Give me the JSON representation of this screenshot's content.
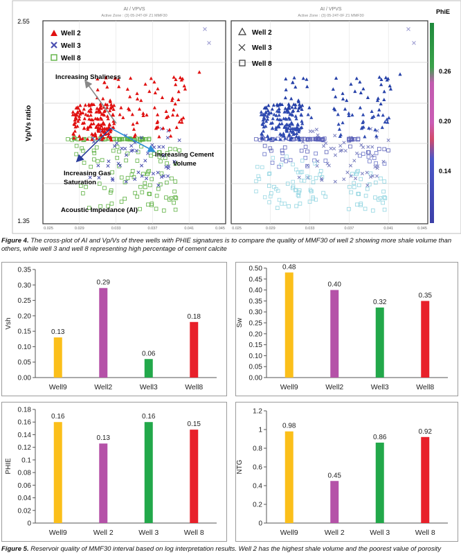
{
  "figure4": {
    "caption_label": "Figure 4.",
    "caption_text": "The cross-plot of AI and Vp/Vs of three wells with PHIE signatures is to compare the quality of MMF30 of well 2 showing more shale volume than others, while well 3 and well 8 representing high percentage of cement calcite",
    "left_header": "AI / VPVS",
    "left_subheader": "Active Zone : (3) 05-24T-0F Z1 MMF30",
    "right_header": "AI / VPVS",
    "right_subheader": "Active Zone : (3) 05-24T-0F Z1 MMF30",
    "y_axis_label": "Vp/Vs ratio",
    "y_top": "2.55",
    "y_bottom": "1.35",
    "x_ticks": [
      "0.025",
      "0.029",
      "0.033",
      "0.037",
      "0.041",
      "0.045"
    ],
    "x_axis_label": "Acoustic Impedance (AI)",
    "annotations": {
      "shaliness": "Increasing Shaliness",
      "cement": "Increasing Cement Volume",
      "gas": "Increasing Gas Saturation"
    },
    "legend_left": [
      "Well  2",
      "Well 3",
      "Well 8"
    ],
    "legend_right": [
      "Well 2",
      "Well 3",
      "Well 8"
    ],
    "colorbar_title": "PhiE",
    "colorbar_ticks": [
      "0.26",
      "0.20",
      "0.14"
    ],
    "colors": {
      "well2": "#e01010",
      "well3": "#4a4fb0",
      "well8": "#5cb040",
      "arrow_shale": "#888888",
      "arrow_cement": "#2e8fd8",
      "arrow_gas": "#2a3d9a"
    }
  },
  "figure5": {
    "caption_label": "Figure 5.",
    "caption_text": "Reservoir quality of MMF30 interval based on log interpretation results. Well 2 has the highest shale volume and the poorest value of porosity"
  },
  "chart_data": [
    {
      "type": "bar",
      "ylabel": "Vsh",
      "categories": [
        "Well9",
        "Well2",
        "Well3",
        "Well8"
      ],
      "values": [
        0.13,
        0.29,
        0.06,
        0.18
      ],
      "data_labels": [
        "0.13",
        "0.29",
        "0.06",
        "0.18"
      ],
      "ylim": [
        0,
        0.35
      ],
      "yticks": [
        "0.00",
        "0.05",
        "0.10",
        "0.15",
        "0.20",
        "0.25",
        "0.30",
        "0.35"
      ],
      "colors": [
        "#fbbf1a",
        "#b552a8",
        "#22a84a",
        "#e8202a"
      ]
    },
    {
      "type": "bar",
      "ylabel": "Sw",
      "categories": [
        "Well9",
        "Well2",
        "Well3",
        "Well8"
      ],
      "values": [
        0.48,
        0.4,
        0.32,
        0.35
      ],
      "data_labels": [
        "0.48",
        "0.40",
        "0.32",
        "0.35"
      ],
      "ylim": [
        0,
        0.5
      ],
      "yticks": [
        "0.00",
        "0.05",
        "0.10",
        "0.15",
        "0.20",
        "0.25",
        "0.30",
        "0.35",
        "0.40",
        "0.45",
        "0.50"
      ],
      "colors": [
        "#fbbf1a",
        "#b552a8",
        "#22a84a",
        "#e8202a"
      ]
    },
    {
      "type": "bar",
      "ylabel": "PHIE",
      "categories": [
        "Well9",
        "Well 2",
        "Well 3",
        "Well 8"
      ],
      "values": [
        0.16,
        0.126,
        0.16,
        0.148
      ],
      "data_labels": [
        "0.16",
        "0.13",
        "0.16",
        "0.15"
      ],
      "ylim": [
        0,
        0.18
      ],
      "yticks": [
        "0",
        "0.02",
        "0.04",
        "0.06",
        "0.08",
        "0.1",
        "0.12",
        "0.14",
        "0.16",
        "0.18"
      ],
      "colors": [
        "#fbbf1a",
        "#b552a8",
        "#22a84a",
        "#e8202a"
      ]
    },
    {
      "type": "bar",
      "ylabel": "NTG",
      "categories": [
        "Well9",
        "Well 2",
        "Well 3",
        "Well 8"
      ],
      "values": [
        0.98,
        0.45,
        0.86,
        0.92
      ],
      "data_labels": [
        "0.98",
        "0.45",
        "0.86",
        "0.92"
      ],
      "ylim": [
        0,
        1.2
      ],
      "yticks": [
        "0",
        "0.2",
        "0.4",
        "0.6",
        "0.8",
        "1",
        "1.2"
      ],
      "colors": [
        "#fbbf1a",
        "#b552a8",
        "#22a84a",
        "#e8202a"
      ]
    }
  ]
}
